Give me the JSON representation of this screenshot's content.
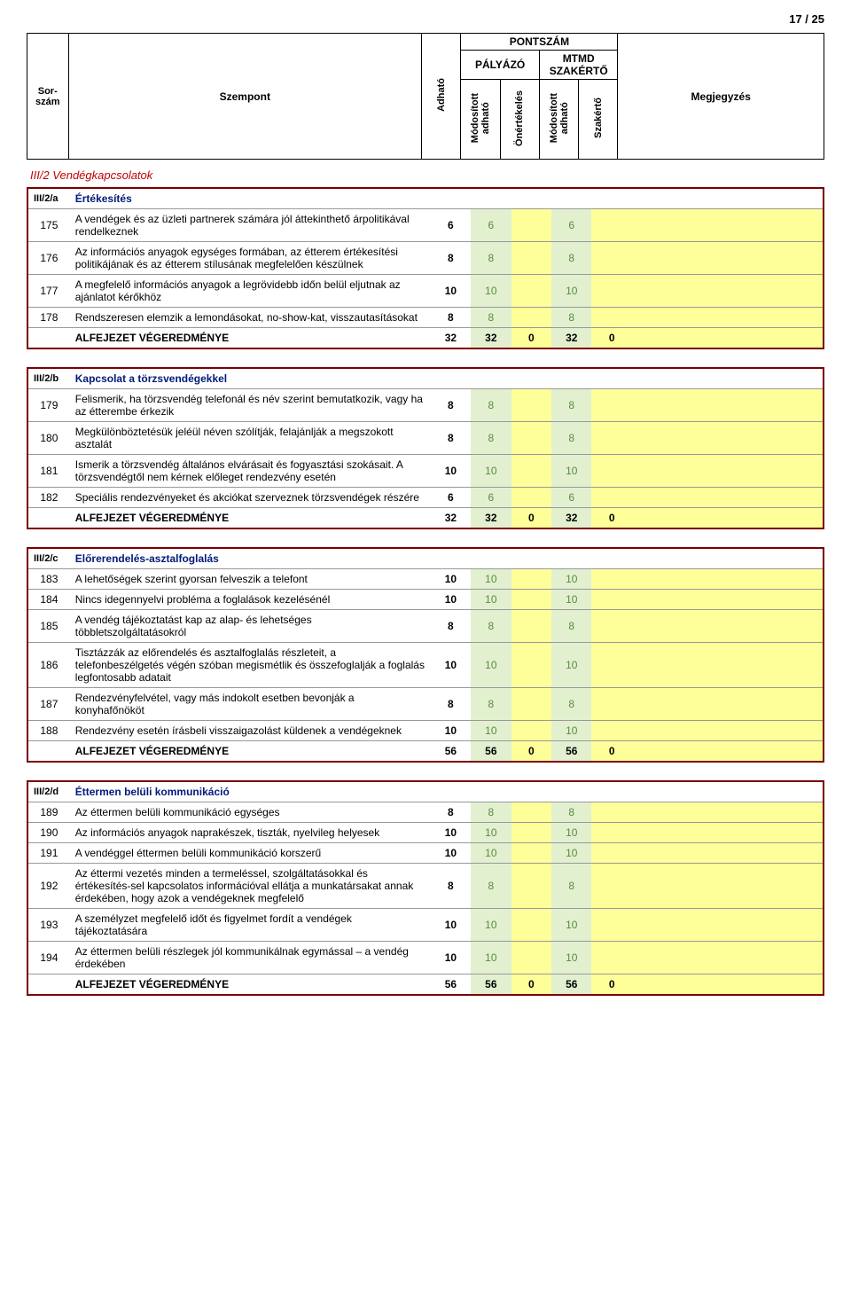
{
  "page_number": "17 / 25",
  "header": {
    "sor": "Sor-\nszám",
    "szempont": "Szempont",
    "adhato": "Adható",
    "pontszam": "PONTSZÁM",
    "palyazo": "PÁLYÁZÓ",
    "mtmd": "MTMD\nSZAKÉRTŐ",
    "mod_adh1": "Módosított\nadható",
    "onert": "Önértékelés",
    "mod_adh2": "Módosított\nadható",
    "szakerto": "Szakértő",
    "megj": "Megjegyzés"
  },
  "chapter": "III/2  Vendégkapcsolatok",
  "colors": {
    "border_block": "#7a0000",
    "bg_green": "#e2f0d0",
    "bg_yellow": "#ffff99",
    "title_blue": "#001a7a",
    "green_text": "#5a8a3f",
    "chapter_red": "#c00000"
  },
  "sections": [
    {
      "id": "III/2/a",
      "title": "Értékesítés",
      "rows": [
        {
          "n": "175",
          "t": "A vendégek és az üzleti partnerek számára jól áttekinthető árpolitikával rendelkeznek",
          "a": "6",
          "p1": "6",
          "p2": "",
          "s1": "6",
          "s2": ""
        },
        {
          "n": "176",
          "t": "Az információs anyagok egységes formában, az étterem értékesítési politikájának és az étterem stílusának megfelelően készülnek",
          "a": "8",
          "p1": "8",
          "p2": "",
          "s1": "8",
          "s2": ""
        },
        {
          "n": "177",
          "t": "A megfelelő információs anyagok a legrövidebb időn belül eljutnak az ajánlatot kérőkhöz",
          "a": "10",
          "p1": "10",
          "p2": "",
          "s1": "10",
          "s2": ""
        },
        {
          "n": "178",
          "t": "Rendszeresen elemzik a lemondásokat, no-show-kat, visszautasításokat",
          "a": "8",
          "p1": "8",
          "p2": "",
          "s1": "8",
          "s2": ""
        }
      ],
      "total": {
        "t": "ALFEJEZET VÉGEREDMÉNYE",
        "a": "32",
        "p1": "32",
        "p2": "0",
        "s1": "32",
        "s2": "0"
      }
    },
    {
      "id": "III/2/b",
      "title": "Kapcsolat a törzsvendégekkel",
      "rows": [
        {
          "n": "179",
          "t": "Felismerik, ha törzsvendég telefonál és név szerint bemutatkozik, vagy ha az étterembe érkezik",
          "a": "8",
          "p1": "8",
          "p2": "",
          "s1": "8",
          "s2": ""
        },
        {
          "n": "180",
          "t": "Megkülönböztetésük jeléül néven szólítják, felajánlják a megszokott asztalát",
          "a": "8",
          "p1": "8",
          "p2": "",
          "s1": "8",
          "s2": ""
        },
        {
          "n": "181",
          "t": "Ismerik a törzsvendég általános elvárásait és fogyasztási szokásait. A törzsvendégtől nem kérnek előleget rendezvény esetén",
          "a": "10",
          "p1": "10",
          "p2": "",
          "s1": "10",
          "s2": ""
        },
        {
          "n": "182",
          "t": "Speciális rendezvényeket és akciókat szerveznek törzsvendégek részére",
          "a": "6",
          "p1": "6",
          "p2": "",
          "s1": "6",
          "s2": ""
        }
      ],
      "total": {
        "t": "ALFEJEZET VÉGEREDMÉNYE",
        "a": "32",
        "p1": "32",
        "p2": "0",
        "s1": "32",
        "s2": "0"
      }
    },
    {
      "id": "III/2/c",
      "title": "Előrerendelés-asztalfoglalás",
      "rows": [
        {
          "n": "183",
          "t": "A lehetőségek szerint gyorsan felveszik a telefont",
          "a": "10",
          "p1": "10",
          "p2": "",
          "s1": "10",
          "s2": ""
        },
        {
          "n": "184",
          "t": "Nincs idegennyelvi probléma a foglalások kezelésénél",
          "a": "10",
          "p1": "10",
          "p2": "",
          "s1": "10",
          "s2": ""
        },
        {
          "n": "185",
          "t": "A vendég tájékoztatást kap az alap- és lehetséges többletszolgáltatásokról",
          "a": "8",
          "p1": "8",
          "p2": "",
          "s1": "8",
          "s2": ""
        },
        {
          "n": "186",
          "t": "Tisztázzák az előrendelés és asztalfoglalás részleteit, a telefonbeszélgetés végén szóban megismétlik és összefoglalják a foglalás legfontosabb adatait",
          "a": "10",
          "p1": "10",
          "p2": "",
          "s1": "10",
          "s2": ""
        },
        {
          "n": "187",
          "t": "Rendezvényfelvétel, vagy más indokolt esetben bevonják a konyhafőnököt",
          "a": "8",
          "p1": "8",
          "p2": "",
          "s1": "8",
          "s2": ""
        },
        {
          "n": "188",
          "t": "Rendezvény esetén írásbeli visszaigazolást küldenek a vendégeknek",
          "a": "10",
          "p1": "10",
          "p2": "",
          "s1": "10",
          "s2": ""
        }
      ],
      "total": {
        "t": "ALFEJEZET VÉGEREDMÉNYE",
        "a": "56",
        "p1": "56",
        "p2": "0",
        "s1": "56",
        "s2": "0"
      }
    },
    {
      "id": "III/2/d",
      "title": "Éttermen belüli kommunikáció",
      "rows": [
        {
          "n": "189",
          "t": "Az éttermen belüli kommunikáció egységes",
          "a": "8",
          "p1": "8",
          "p2": "",
          "s1": "8",
          "s2": ""
        },
        {
          "n": "190",
          "t": "Az információs anyagok naprakészek, tiszták, nyelvileg helyesek",
          "a": "10",
          "p1": "10",
          "p2": "",
          "s1": "10",
          "s2": ""
        },
        {
          "n": "191",
          "t": "A vendéggel éttermen belüli kommunikáció korszerű",
          "a": "10",
          "p1": "10",
          "p2": "",
          "s1": "10",
          "s2": ""
        },
        {
          "n": "192",
          "t": "Az éttermi vezetés minden a termeléssel, szolgáltatásokkal és értékesítés-sel kapcsolatos információval ellátja a munkatársakat annak érdekében, hogy azok a vendégeknek megfelelő",
          "a": "8",
          "p1": "8",
          "p2": "",
          "s1": "8",
          "s2": ""
        },
        {
          "n": "193",
          "t": "A személyzet megfelelő időt és figyelmet fordít a vendégek tájékoztatására",
          "a": "10",
          "p1": "10",
          "p2": "",
          "s1": "10",
          "s2": ""
        },
        {
          "n": "194",
          "t": "Az éttermen belüli részlegek jól kommunikálnak egymással – a vendég érdekében",
          "a": "10",
          "p1": "10",
          "p2": "",
          "s1": "10",
          "s2": ""
        }
      ],
      "total": {
        "t": "ALFEJEZET VÉGEREDMÉNYE",
        "a": "56",
        "p1": "56",
        "p2": "0",
        "s1": "56",
        "s2": "0"
      }
    }
  ]
}
